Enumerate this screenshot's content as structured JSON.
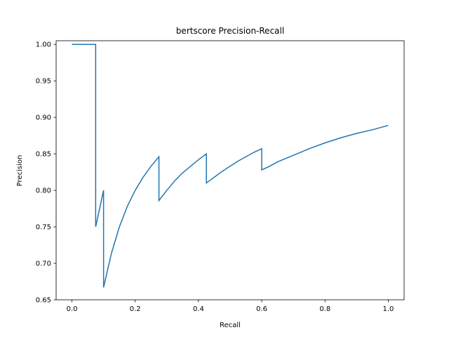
{
  "chart_data": {
    "type": "line",
    "title": "bertscore Precision-Recall",
    "xlabel": "Recall",
    "ylabel": "Precision",
    "xlim": [
      -0.05,
      1.05
    ],
    "ylim": [
      0.65,
      1.005
    ],
    "xticks": [
      0.0,
      0.2,
      0.4,
      0.6,
      0.8,
      1.0
    ],
    "xtick_labels": [
      "0.0",
      "0.2",
      "0.4",
      "0.6",
      "0.8",
      "1.0"
    ],
    "yticks": [
      0.65,
      0.7,
      0.75,
      0.8,
      0.85,
      0.9,
      0.95,
      1.0
    ],
    "ytick_labels": [
      "0.65",
      "0.70",
      "0.75",
      "0.80",
      "0.85",
      "0.90",
      "0.95",
      "1.00"
    ],
    "grid": false,
    "legend": false,
    "series": [
      {
        "name": "bertscore",
        "color": "#1f77b4",
        "x": [
          0.0,
          0.075,
          0.075,
          0.1,
          0.1,
          0.125,
          0.15,
          0.175,
          0.2,
          0.225,
          0.25,
          0.275,
          0.275,
          0.3,
          0.325,
          0.35,
          0.375,
          0.4,
          0.425,
          0.425,
          0.45,
          0.475,
          0.5,
          0.525,
          0.55,
          0.575,
          0.6,
          0.6,
          0.625,
          0.65,
          0.7,
          0.75,
          0.8,
          0.85,
          0.9,
          0.95,
          1.0
        ],
        "y": [
          1.0,
          1.0,
          0.75,
          0.8,
          0.667,
          0.714,
          0.75,
          0.778,
          0.8,
          0.818,
          0.833,
          0.846,
          0.786,
          0.8,
          0.813,
          0.824,
          0.833,
          0.842,
          0.85,
          0.81,
          0.818,
          0.826,
          0.833,
          0.84,
          0.846,
          0.852,
          0.857,
          0.828,
          0.833,
          0.839,
          0.848,
          0.857,
          0.865,
          0.872,
          0.878,
          0.883,
          0.889
        ]
      }
    ]
  }
}
